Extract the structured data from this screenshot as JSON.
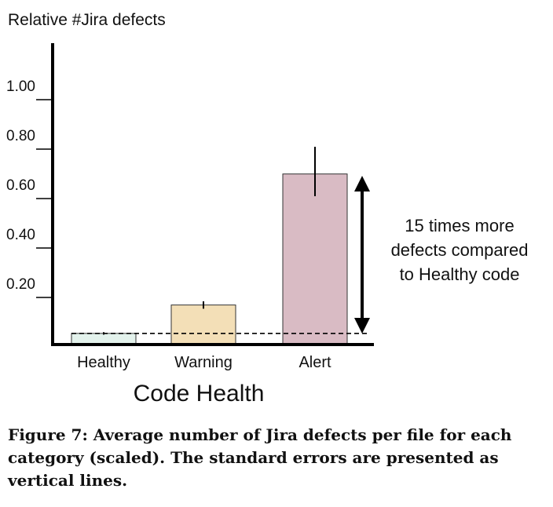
{
  "chart_data": {
    "type": "bar",
    "title": "Relative #Jira defects",
    "xlabel": "Code Health",
    "ylabel": "",
    "categories": [
      "Healthy",
      "Warning",
      "Alert"
    ],
    "values": [
      0.045,
      0.16,
      0.69
    ],
    "error_ranges": [
      [
        0.04,
        0.05
      ],
      [
        0.145,
        0.175
      ],
      [
        0.6,
        0.8
      ]
    ],
    "colors": [
      "#e3f2ec",
      "#f3dfb7",
      "#d9bbc4"
    ],
    "yticks": [
      "1.00",
      "0.80",
      "0.60",
      "0.40",
      "0.20"
    ],
    "ytick_values": [
      1.0,
      0.8,
      0.6,
      0.4,
      0.2
    ],
    "ylim": [
      0,
      1.2
    ],
    "reference_line": 0.045,
    "annotation": [
      "15 times more",
      "defects compared",
      "to Healthy code"
    ],
    "grid": false,
    "legend": "none"
  },
  "caption": "Figure 7: Average number of Jira defects per file for each category (scaled). The standard errors are presented as vertical lines."
}
